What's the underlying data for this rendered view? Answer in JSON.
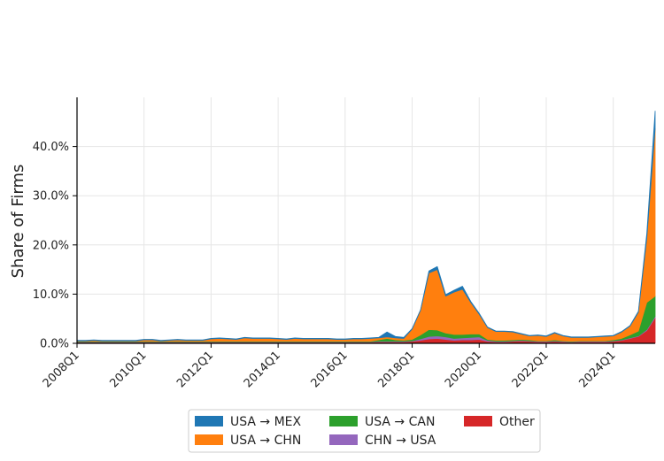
{
  "chart_data": {
    "type": "area",
    "stacked": true,
    "ylabel": "Share of Firms",
    "ylim": [
      0,
      50
    ],
    "yticks": [
      0,
      10,
      20,
      30,
      40
    ],
    "ytick_labels": [
      "0.0%",
      "10.0%",
      "20.0%",
      "30.0%",
      "40.0%"
    ],
    "x_start": "2008Q1",
    "x_end": "2025Q2",
    "xtick_labels": [
      "2008Q1",
      "2010Q1",
      "2012Q1",
      "2014Q1",
      "2016Q1",
      "2018Q1",
      "2020Q1",
      "2022Q1",
      "2024Q1"
    ],
    "grid": true,
    "legend_position": "bottom",
    "x": [
      "2008Q1",
      "2008Q2",
      "2008Q3",
      "2008Q4",
      "2009Q1",
      "2009Q2",
      "2009Q3",
      "2009Q4",
      "2010Q1",
      "2010Q2",
      "2010Q3",
      "2010Q4",
      "2011Q1",
      "2011Q2",
      "2011Q3",
      "2011Q4",
      "2012Q1",
      "2012Q2",
      "2012Q3",
      "2012Q4",
      "2013Q1",
      "2013Q2",
      "2013Q3",
      "2013Q4",
      "2014Q1",
      "2014Q2",
      "2014Q3",
      "2014Q4",
      "2015Q1",
      "2015Q2",
      "2015Q3",
      "2015Q4",
      "2016Q1",
      "2016Q2",
      "2016Q3",
      "2016Q4",
      "2017Q1",
      "2017Q2",
      "2017Q3",
      "2017Q4",
      "2018Q1",
      "2018Q2",
      "2018Q3",
      "2018Q4",
      "2019Q1",
      "2019Q2",
      "2019Q3",
      "2019Q4",
      "2020Q1",
      "2020Q2",
      "2020Q3",
      "2020Q4",
      "2021Q1",
      "2021Q2",
      "2021Q3",
      "2021Q4",
      "2022Q1",
      "2022Q2",
      "2022Q3",
      "2022Q4",
      "2023Q1",
      "2023Q2",
      "2023Q3",
      "2023Q4",
      "2024Q1",
      "2024Q2",
      "2024Q3",
      "2024Q4",
      "2025Q1",
      "2025Q2"
    ],
    "series": [
      {
        "name": "Other",
        "color": "#d62728",
        "values": [
          0.2,
          0.2,
          0.2,
          0.2,
          0.2,
          0.2,
          0.2,
          0.2,
          0.2,
          0.2,
          0.2,
          0.2,
          0.2,
          0.2,
          0.2,
          0.2,
          0.2,
          0.2,
          0.2,
          0.2,
          0.2,
          0.2,
          0.2,
          0.2,
          0.2,
          0.2,
          0.2,
          0.2,
          0.2,
          0.2,
          0.2,
          0.2,
          0.2,
          0.2,
          0.2,
          0.2,
          0.3,
          0.3,
          0.3,
          0.3,
          0.4,
          0.6,
          0.9,
          1.0,
          0.8,
          0.6,
          0.7,
          0.7,
          0.8,
          0.4,
          0.3,
          0.3,
          0.4,
          0.5,
          0.4,
          0.3,
          0.3,
          0.4,
          0.3,
          0.2,
          0.3,
          0.3,
          0.3,
          0.3,
          0.4,
          0.6,
          1.0,
          1.4,
          2.6,
          5.2
        ]
      },
      {
        "name": "CHN → USA",
        "color": "#9467bd",
        "values": [
          0.1,
          0.1,
          0.1,
          0.1,
          0.1,
          0.1,
          0.1,
          0.1,
          0.1,
          0.1,
          0.1,
          0.1,
          0.1,
          0.1,
          0.1,
          0.1,
          0.1,
          0.1,
          0.1,
          0.1,
          0.1,
          0.1,
          0.1,
          0.1,
          0.1,
          0.1,
          0.1,
          0.1,
          0.1,
          0.1,
          0.1,
          0.1,
          0.1,
          0.1,
          0.1,
          0.1,
          0.1,
          0.1,
          0.1,
          0.1,
          0.1,
          0.3,
          0.5,
          0.5,
          0.5,
          0.4,
          0.4,
          0.5,
          0.5,
          0.2,
          0.1,
          0.1,
          0.1,
          0.1,
          0.1,
          0.1,
          0.1,
          0.1,
          0.1,
          0.1,
          0.1,
          0.1,
          0.1,
          0.1,
          0.1,
          0.1,
          0.1,
          0.1,
          0.2,
          0.3
        ]
      },
      {
        "name": "USA → CAN",
        "color": "#2ca02c",
        "values": [
          0.1,
          0.1,
          0.1,
          0.1,
          0.1,
          0.1,
          0.1,
          0.1,
          0.1,
          0.1,
          0.1,
          0.1,
          0.1,
          0.1,
          0.1,
          0.1,
          0.1,
          0.1,
          0.1,
          0.1,
          0.1,
          0.1,
          0.1,
          0.1,
          0.1,
          0.1,
          0.1,
          0.1,
          0.1,
          0.1,
          0.1,
          0.1,
          0.1,
          0.1,
          0.1,
          0.1,
          0.3,
          0.6,
          0.3,
          0.2,
          0.3,
          0.8,
          1.4,
          1.2,
          0.8,
          0.8,
          0.7,
          0.7,
          0.6,
          0.2,
          0.2,
          0.2,
          0.2,
          0.2,
          0.2,
          0.1,
          0.1,
          0.2,
          0.1,
          0.1,
          0.1,
          0.1,
          0.1,
          0.1,
          0.2,
          0.3,
          0.6,
          1.0,
          5.5,
          4.1
        ]
      },
      {
        "name": "USA → CHN",
        "color": "#ff7f0e",
        "values": [
          0.1,
          0.1,
          0.2,
          0.1,
          0.1,
          0.1,
          0.1,
          0.1,
          0.3,
          0.3,
          0.1,
          0.2,
          0.3,
          0.2,
          0.2,
          0.2,
          0.5,
          0.6,
          0.5,
          0.4,
          0.7,
          0.6,
          0.6,
          0.6,
          0.5,
          0.4,
          0.6,
          0.5,
          0.5,
          0.5,
          0.5,
          0.4,
          0.4,
          0.5,
          0.5,
          0.6,
          0.4,
          0.3,
          0.4,
          0.4,
          2.1,
          5.0,
          11.5,
          12.3,
          7.5,
          8.6,
          9.2,
          6.4,
          4.0,
          2.4,
          1.8,
          1.8,
          1.6,
          1.1,
          0.8,
          1.1,
          0.9,
          1.4,
          1.0,
          0.8,
          0.7,
          0.7,
          0.8,
          0.9,
          0.8,
          1.3,
          1.8,
          3.8,
          13.0,
          34.0
        ]
      },
      {
        "name": "USA → MEX",
        "color": "#1f77b4",
        "values": [
          0.1,
          0.1,
          0.1,
          0.1,
          0.1,
          0.1,
          0.1,
          0.1,
          0.1,
          0.1,
          0.1,
          0.1,
          0.1,
          0.1,
          0.1,
          0.1,
          0.1,
          0.1,
          0.1,
          0.1,
          0.1,
          0.1,
          0.1,
          0.1,
          0.1,
          0.1,
          0.1,
          0.1,
          0.1,
          0.1,
          0.1,
          0.1,
          0.1,
          0.1,
          0.1,
          0.1,
          0.1,
          1.0,
          0.3,
          0.2,
          0.1,
          0.1,
          0.4,
          0.6,
          0.3,
          0.4,
          0.6,
          0.2,
          0.2,
          0.1,
          0.1,
          0.1,
          0.1,
          0.1,
          0.1,
          0.1,
          0.1,
          0.1,
          0.1,
          0.1,
          0.1,
          0.1,
          0.1,
          0.1,
          0.1,
          0.1,
          0.1,
          0.2,
          1.0,
          3.6
        ]
      }
    ],
    "legend_order": [
      "USA → MEX",
      "USA → CHN",
      "USA → CAN",
      "CHN → USA",
      "Other"
    ]
  }
}
